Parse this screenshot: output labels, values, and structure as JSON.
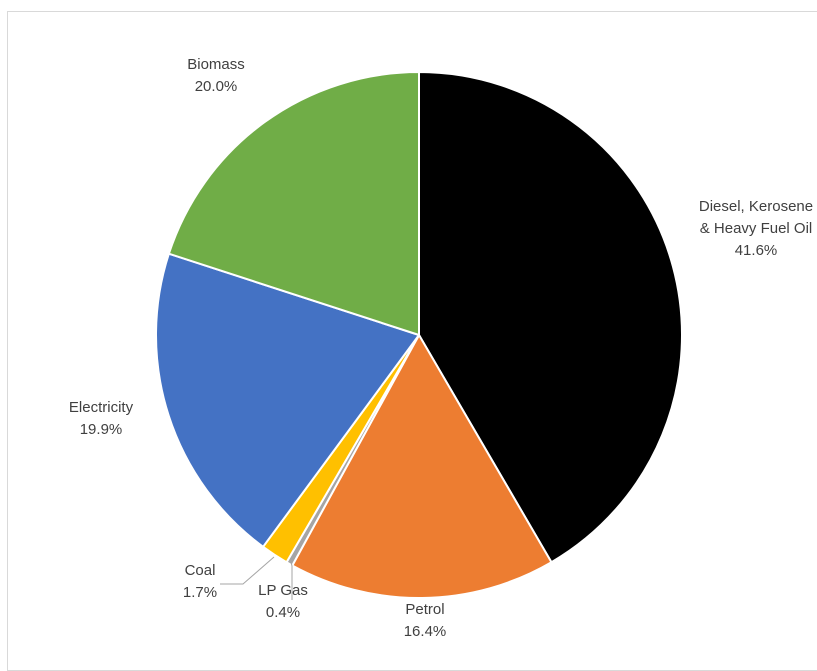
{
  "chart_data": {
    "type": "pie",
    "title": "",
    "unit": "%",
    "slices": [
      {
        "name": "Diesel, Kerosene",
        "name_line2": "& Heavy Fuel Oil",
        "value": 41.6,
        "value_label": "41.6%",
        "color": "#000000"
      },
      {
        "name": "Petrol",
        "value": 16.4,
        "value_label": "16.4%",
        "color": "#ed7d31"
      },
      {
        "name": "LP Gas",
        "value": 0.4,
        "value_label": "0.4%",
        "color": "#a5a5a5"
      },
      {
        "name": "Coal",
        "value": 1.7,
        "value_label": "1.7%",
        "color": "#ffc000"
      },
      {
        "name": "Electricity",
        "value": 19.9,
        "value_label": "19.9%",
        "color": "#4472c4"
      },
      {
        "name": "Biomass",
        "value": 20.0,
        "value_label": "20.0%",
        "color": "#70ad47"
      }
    ],
    "start_angle": "12 o'clock",
    "direction": "clockwise",
    "legend": "none",
    "data_labels": "outside, category name and percentage"
  }
}
